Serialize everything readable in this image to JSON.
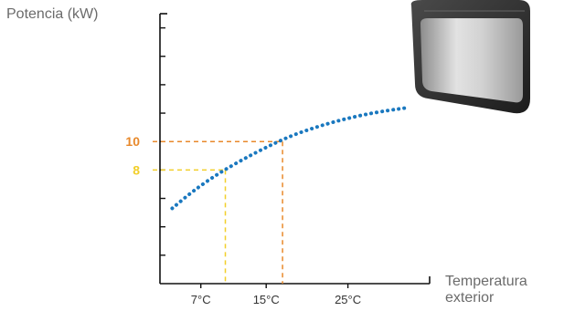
{
  "chart_data": {
    "type": "line",
    "ylabel": "Potencia (kW)",
    "xlabel_line1": "Temperatura",
    "xlabel_line2": "exterior",
    "x_ticks": [
      {
        "label": "7°C",
        "value": 7
      },
      {
        "label": "15°C",
        "value": 15
      },
      {
        "label": "25°C",
        "value": 25
      }
    ],
    "xlim": [
      2,
      35
    ],
    "ylim": [
      0,
      19
    ],
    "y_tick_values": [
      2,
      4,
      6,
      8,
      10,
      12,
      14,
      16,
      18
    ],
    "series": [
      {
        "color": "#1a78bf",
        "style": "dotted",
        "x": [
          3.5,
          6,
          9,
          12,
          15,
          18,
          21,
          24,
          27,
          30,
          32.5
        ],
        "y": [
          5.3,
          6.5,
          7.7,
          8.7,
          9.6,
          10.4,
          11.0,
          11.5,
          11.9,
          12.2,
          12.4
        ]
      }
    ],
    "annotations": [
      {
        "label": "10",
        "x": 17,
        "y": 10,
        "color": "#e8892b"
      },
      {
        "label": "8",
        "x": 10,
        "y": 8,
        "color": "#f2cf2a"
      }
    ]
  },
  "colors": {
    "axis": "#111111",
    "text": "#6b6b6b",
    "curve": "#1a78bf",
    "orange": "#e8892b",
    "yellow": "#f2cf2a"
  },
  "product_icon": "air-conditioner-unit-image"
}
